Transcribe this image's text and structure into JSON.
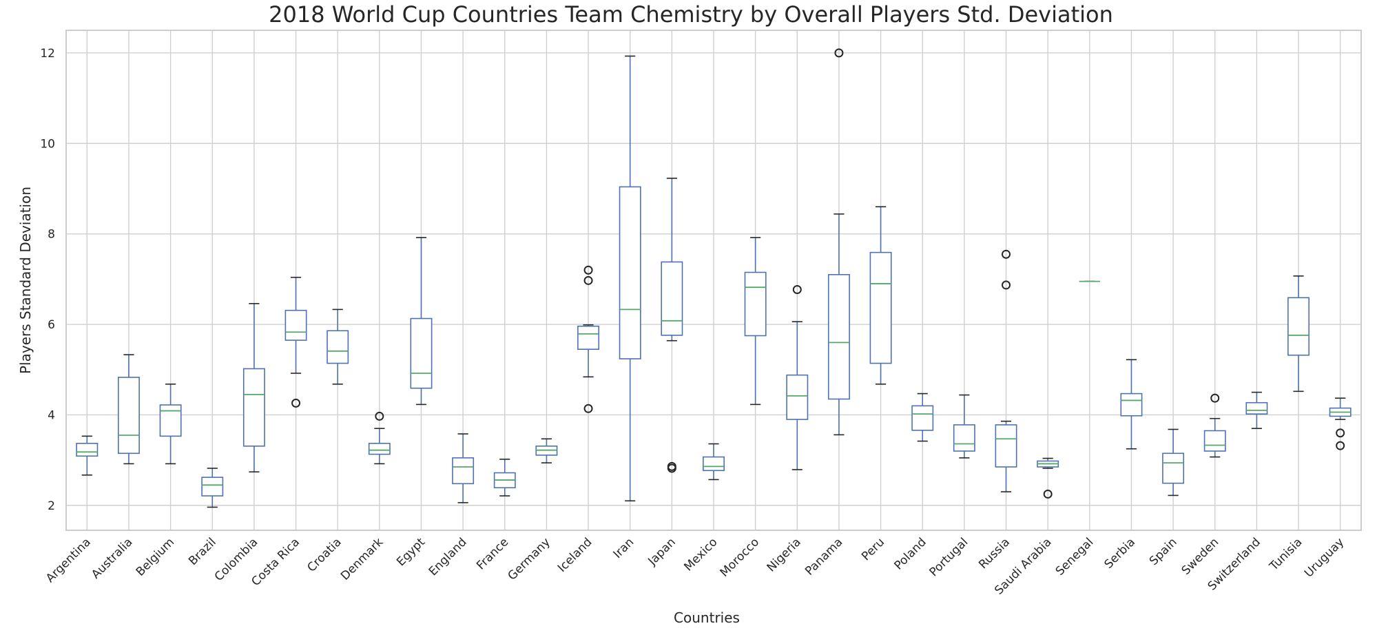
{
  "chart_data": {
    "type": "boxplot",
    "title": "2018 World Cup Countries Team Chemistry by Overall Players Std. Deviation",
    "xlabel": "Countries",
    "ylabel": "Players Standard Deviation",
    "ylim": [
      1.45,
      12.5
    ],
    "yticks": [
      2,
      4,
      6,
      8,
      10,
      12
    ],
    "grid": true,
    "colors": {
      "box": "#4c72b0",
      "median": "#55a868",
      "outlier": "#262626",
      "grid": "#cfcfcf"
    },
    "categories": [
      "Argentina",
      "Australia",
      "Belgium",
      "Brazil",
      "Colombia",
      "Costa Rica",
      "Croatia",
      "Denmark",
      "Egypt",
      "England",
      "France",
      "Germany",
      "Iceland",
      "Iran",
      "Japan",
      "Mexico",
      "Morocco",
      "Nigeria",
      "Panama",
      "Peru",
      "Poland",
      "Portugal",
      "Russia",
      "Saudi Arabia",
      "Senegal",
      "Serbia",
      "Spain",
      "Sweden",
      "Switzerland",
      "Tunisia",
      "Uruguay"
    ],
    "series": [
      {
        "whislo": 2.67,
        "q1": 3.09,
        "med": 3.18,
        "q3": 3.37,
        "whishi": 3.53,
        "fliers": []
      },
      {
        "whislo": 2.92,
        "q1": 3.15,
        "med": 3.55,
        "q3": 4.83,
        "whishi": 5.33,
        "fliers": []
      },
      {
        "whislo": 2.92,
        "q1": 3.53,
        "med": 4.09,
        "q3": 4.22,
        "whishi": 4.68,
        "fliers": []
      },
      {
        "whislo": 1.96,
        "q1": 2.21,
        "med": 2.45,
        "q3": 2.62,
        "whishi": 2.82,
        "fliers": []
      },
      {
        "whislo": 2.74,
        "q1": 3.31,
        "med": 4.45,
        "q3": 5.02,
        "whishi": 6.46,
        "fliers": []
      },
      {
        "whislo": 4.92,
        "q1": 5.65,
        "med": 5.83,
        "q3": 6.31,
        "whishi": 7.04,
        "fliers": [
          4.26
        ]
      },
      {
        "whislo": 4.68,
        "q1": 5.14,
        "med": 5.41,
        "q3": 5.86,
        "whishi": 6.33,
        "fliers": []
      },
      {
        "whislo": 2.92,
        "q1": 3.13,
        "med": 3.22,
        "q3": 3.37,
        "whishi": 3.7,
        "fliers": [
          3.97
        ]
      },
      {
        "whislo": 4.23,
        "q1": 4.59,
        "med": 4.92,
        "q3": 6.13,
        "whishi": 7.92,
        "fliers": []
      },
      {
        "whislo": 2.06,
        "q1": 2.48,
        "med": 2.85,
        "q3": 3.05,
        "whishi": 3.58,
        "fliers": []
      },
      {
        "whislo": 2.21,
        "q1": 2.39,
        "med": 2.56,
        "q3": 2.72,
        "whishi": 3.02,
        "fliers": []
      },
      {
        "whislo": 2.94,
        "q1": 3.11,
        "med": 3.22,
        "q3": 3.31,
        "whishi": 3.47,
        "fliers": []
      },
      {
        "whislo": 4.84,
        "q1": 5.45,
        "med": 5.79,
        "q3": 5.96,
        "whishi": 5.99,
        "fliers": [
          4.14,
          6.97,
          7.2
        ]
      },
      {
        "whislo": 2.1,
        "q1": 5.24,
        "med": 6.33,
        "q3": 9.04,
        "whishi": 11.93,
        "fliers": []
      },
      {
        "whislo": 5.64,
        "q1": 5.76,
        "med": 6.08,
        "q3": 7.38,
        "whishi": 9.23,
        "fliers": [
          2.82,
          2.86
        ]
      },
      {
        "whislo": 2.57,
        "q1": 2.77,
        "med": 2.86,
        "q3": 3.07,
        "whishi": 3.36,
        "fliers": []
      },
      {
        "whislo": 4.23,
        "q1": 5.75,
        "med": 6.82,
        "q3": 7.15,
        "whishi": 7.92,
        "fliers": []
      },
      {
        "whislo": 2.79,
        "q1": 3.9,
        "med": 4.42,
        "q3": 4.88,
        "whishi": 6.06,
        "fliers": [
          6.77
        ]
      },
      {
        "whislo": 3.56,
        "q1": 4.35,
        "med": 5.6,
        "q3": 7.1,
        "whishi": 8.44,
        "fliers": [
          12.0
        ]
      },
      {
        "whislo": 4.68,
        "q1": 5.14,
        "med": 6.9,
        "q3": 7.59,
        "whishi": 8.6,
        "fliers": []
      },
      {
        "whislo": 3.42,
        "q1": 3.66,
        "med": 4.02,
        "q3": 4.2,
        "whishi": 4.47,
        "fliers": []
      },
      {
        "whislo": 3.05,
        "q1": 3.2,
        "med": 3.36,
        "q3": 3.78,
        "whishi": 4.44,
        "fliers": []
      },
      {
        "whislo": 2.3,
        "q1": 2.85,
        "med": 3.47,
        "q3": 3.78,
        "whishi": 3.86,
        "fliers": [
          6.87,
          7.55
        ]
      },
      {
        "whislo": 2.82,
        "q1": 2.85,
        "med": 2.92,
        "q3": 2.98,
        "whishi": 3.04,
        "fliers": [
          2.25
        ]
      },
      {
        "whislo": 6.95,
        "q1": 6.95,
        "med": 6.95,
        "q3": 6.95,
        "whishi": 6.95,
        "fliers": []
      },
      {
        "whislo": 3.25,
        "q1": 3.98,
        "med": 4.32,
        "q3": 4.47,
        "whishi": 5.22,
        "fliers": []
      },
      {
        "whislo": 2.22,
        "q1": 2.49,
        "med": 2.94,
        "q3": 3.15,
        "whishi": 3.68,
        "fliers": []
      },
      {
        "whislo": 3.07,
        "q1": 3.2,
        "med": 3.33,
        "q3": 3.65,
        "whishi": 3.92,
        "fliers": [
          4.37
        ]
      },
      {
        "whislo": 3.7,
        "q1": 4.02,
        "med": 4.1,
        "q3": 4.27,
        "whishi": 4.5,
        "fliers": []
      },
      {
        "whislo": 4.52,
        "q1": 5.32,
        "med": 5.76,
        "q3": 6.59,
        "whishi": 7.07,
        "fliers": []
      },
      {
        "whislo": 3.9,
        "q1": 3.97,
        "med": 4.06,
        "q3": 4.15,
        "whishi": 4.37,
        "fliers": [
          3.32,
          3.6
        ]
      }
    ]
  }
}
